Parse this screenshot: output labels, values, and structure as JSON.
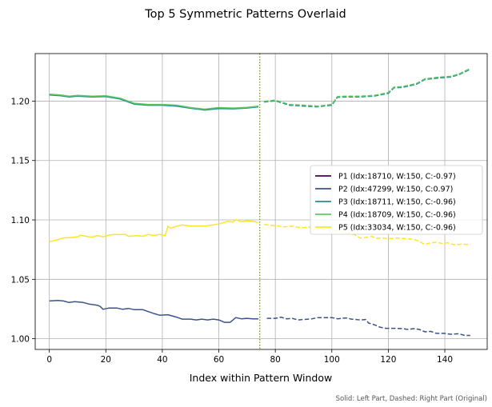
{
  "chart_data": {
    "type": "line",
    "title": "Top 5 Symmetric Patterns Overlaid",
    "xlabel": "Index within Pattern Window",
    "ylabel": "",
    "xlim": [
      -5,
      155
    ],
    "ylim": [
      0.991,
      1.24
    ],
    "x_ticks": [
      0,
      20,
      40,
      60,
      80,
      100,
      120,
      140
    ],
    "y_ticks": [
      1.0,
      1.05,
      1.1,
      1.15,
      1.2
    ],
    "x_tick_labels": [
      "0",
      "20",
      "40",
      "60",
      "80",
      "100",
      "120",
      "140"
    ],
    "y_tick_labels": [
      "1.00",
      "1.05",
      "1.10",
      "1.15",
      "1.20"
    ],
    "grid": true,
    "legend_position": "center-right",
    "split_index": 74.5,
    "split_color": "#6b8e23",
    "footnote": "Solid: Left Part, Dashed: Right Part (Original)",
    "series": [
      {
        "name": "P1 (Idx:18710, W:150, C:-0.97)",
        "color": "#440154",
        "points": [
          [
            0,
            1.2055
          ],
          [
            4,
            1.2048
          ],
          [
            7,
            1.2038
          ],
          [
            10,
            1.2044
          ],
          [
            15,
            1.2038
          ],
          [
            20,
            1.2041
          ],
          [
            25,
            1.2021
          ],
          [
            30,
            1.1978
          ],
          [
            35,
            1.1968
          ],
          [
            40,
            1.1968
          ],
          [
            45,
            1.1962
          ],
          [
            50,
            1.1943
          ],
          [
            55,
            1.1928
          ],
          [
            60,
            1.1942
          ],
          [
            65,
            1.1938
          ],
          [
            70,
            1.1945
          ],
          [
            74,
            1.1955
          ],
          [
            76,
            1.1995
          ],
          [
            80,
            1.2005
          ],
          [
            85,
            1.1968
          ],
          [
            90,
            1.1962
          ],
          [
            95,
            1.1955
          ],
          [
            100,
            1.1968
          ],
          [
            102,
            1.2035
          ],
          [
            105,
            1.2038
          ],
          [
            110,
            1.2038
          ],
          [
            115,
            1.2045
          ],
          [
            120,
            1.2068
          ],
          [
            122,
            1.2115
          ],
          [
            125,
            1.2118
          ],
          [
            130,
            1.2145
          ],
          [
            133,
            1.2185
          ],
          [
            138,
            1.2198
          ],
          [
            142,
            1.2205
          ],
          [
            145,
            1.2225
          ],
          [
            149,
            1.2272
          ]
        ]
      },
      {
        "name": "P2 (Idx:47299, W:150, C:0.97)",
        "color": "#3b528b",
        "points": [
          [
            0,
            1.0318
          ],
          [
            3,
            1.0322
          ],
          [
            5,
            1.0318
          ],
          [
            7,
            1.0305
          ],
          [
            9,
            1.0312
          ],
          [
            12,
            1.0305
          ],
          [
            14,
            1.0292
          ],
          [
            17,
            1.0282
          ],
          [
            18,
            1.0272
          ],
          [
            19,
            1.0248
          ],
          [
            21,
            1.0258
          ],
          [
            24,
            1.0258
          ],
          [
            26,
            1.0248
          ],
          [
            28,
            1.0255
          ],
          [
            30,
            1.0245
          ],
          [
            33,
            1.0245
          ],
          [
            35,
            1.0228
          ],
          [
            37,
            1.0212
          ],
          [
            39,
            1.0198
          ],
          [
            42,
            1.0202
          ],
          [
            45,
            1.0182
          ],
          [
            47,
            1.0165
          ],
          [
            50,
            1.0165
          ],
          [
            52,
            1.0158
          ],
          [
            54,
            1.0165
          ],
          [
            56,
            1.0158
          ],
          [
            58,
            1.0165
          ],
          [
            60,
            1.0158
          ],
          [
            62,
            1.0138
          ],
          [
            64,
            1.0138
          ],
          [
            66,
            1.0178
          ],
          [
            68,
            1.0168
          ],
          [
            70,
            1.0172
          ],
          [
            72,
            1.0168
          ],
          [
            74,
            1.0168
          ],
          [
            77,
            1.0172
          ],
          [
            80,
            1.0172
          ],
          [
            82,
            1.0182
          ],
          [
            84,
            1.0168
          ],
          [
            86,
            1.0172
          ],
          [
            88,
            1.0158
          ],
          [
            90,
            1.0162
          ],
          [
            93,
            1.0168
          ],
          [
            95,
            1.0178
          ],
          [
            98,
            1.0178
          ],
          [
            100,
            1.0178
          ],
          [
            102,
            1.0168
          ],
          [
            105,
            1.0175
          ],
          [
            107,
            1.0165
          ],
          [
            110,
            1.0158
          ],
          [
            112,
            1.0162
          ],
          [
            113,
            1.0132
          ],
          [
            115,
            1.0118
          ],
          [
            117,
            1.0098
          ],
          [
            119,
            1.0088
          ],
          [
            122,
            1.0088
          ],
          [
            125,
            1.0085
          ],
          [
            127,
            1.0078
          ],
          [
            129,
            1.0085
          ],
          [
            131,
            1.0078
          ],
          [
            133,
            1.0058
          ],
          [
            135,
            1.0062
          ],
          [
            137,
            1.0045
          ],
          [
            140,
            1.0045
          ],
          [
            142,
            1.0038
          ],
          [
            145,
            1.0042
          ],
          [
            147,
            1.0028
          ],
          [
            149,
            1.0028
          ]
        ]
      },
      {
        "name": "P3 (Idx:18711, W:150, C:-0.96)",
        "color": "#21918c",
        "points": [
          [
            0,
            1.2052
          ],
          [
            4,
            1.2045
          ],
          [
            7,
            1.2035
          ],
          [
            10,
            1.2042
          ],
          [
            15,
            1.2035
          ],
          [
            20,
            1.2038
          ],
          [
            25,
            1.2018
          ],
          [
            30,
            1.1975
          ],
          [
            35,
            1.1965
          ],
          [
            40,
            1.1965
          ],
          [
            45,
            1.1958
          ],
          [
            50,
            1.194
          ],
          [
            55,
            1.1925
          ],
          [
            60,
            1.1938
          ],
          [
            65,
            1.1935
          ],
          [
            70,
            1.1942
          ],
          [
            74,
            1.1952
          ],
          [
            76,
            1.1992
          ],
          [
            80,
            1.2002
          ],
          [
            85,
            1.1965
          ],
          [
            90,
            1.1958
          ],
          [
            95,
            1.1952
          ],
          [
            100,
            1.1965
          ],
          [
            102,
            1.2032
          ],
          [
            105,
            1.2035
          ],
          [
            110,
            1.2035
          ],
          [
            115,
            1.2042
          ],
          [
            120,
            1.2065
          ],
          [
            122,
            1.2112
          ],
          [
            125,
            1.2115
          ],
          [
            130,
            1.2142
          ],
          [
            133,
            1.2182
          ],
          [
            138,
            1.2195
          ],
          [
            142,
            1.2202
          ],
          [
            145,
            1.2222
          ],
          [
            149,
            1.2268
          ]
        ]
      },
      {
        "name": "P4 (Idx:18709, W:150, C:-0.96)",
        "color": "#5ec962",
        "points": [
          [
            0,
            1.2058
          ],
          [
            4,
            1.2052
          ],
          [
            7,
            1.2042
          ],
          [
            10,
            1.2048
          ],
          [
            15,
            1.2042
          ],
          [
            20,
            1.2045
          ],
          [
            25,
            1.2025
          ],
          [
            30,
            1.1982
          ],
          [
            35,
            1.1972
          ],
          [
            40,
            1.1972
          ],
          [
            45,
            1.1966
          ],
          [
            50,
            1.1946
          ],
          [
            55,
            1.1932
          ],
          [
            60,
            1.1946
          ],
          [
            65,
            1.1942
          ],
          [
            70,
            1.1948
          ],
          [
            74,
            1.1958
          ],
          [
            76,
            1.1998
          ],
          [
            80,
            1.2008
          ],
          [
            85,
            1.1972
          ],
          [
            90,
            1.1966
          ],
          [
            95,
            1.1958
          ],
          [
            100,
            1.1972
          ],
          [
            102,
            1.2038
          ],
          [
            105,
            1.2042
          ],
          [
            110,
            1.2042
          ],
          [
            115,
            1.2048
          ],
          [
            120,
            1.2072
          ],
          [
            122,
            1.2118
          ],
          [
            125,
            1.2122
          ],
          [
            130,
            1.2148
          ],
          [
            133,
            1.2188
          ],
          [
            138,
            1.2202
          ],
          [
            142,
            1.2208
          ],
          [
            145,
            1.2228
          ],
          [
            149,
            1.2275
          ]
        ]
      },
      {
        "name": "P5 (Idx:33034, W:150, C:-0.96)",
        "color": "#fde725",
        "points": [
          [
            0,
            1.0818
          ],
          [
            2,
            1.0828
          ],
          [
            5,
            1.0848
          ],
          [
            8,
            1.0852
          ],
          [
            10,
            1.0858
          ],
          [
            11,
            1.0872
          ],
          [
            13,
            1.0862
          ],
          [
            15,
            1.0855
          ],
          [
            17,
            1.0868
          ],
          [
            19,
            1.0858
          ],
          [
            21,
            1.0872
          ],
          [
            23,
            1.0878
          ],
          [
            27,
            1.0878
          ],
          [
            28,
            1.0862
          ],
          [
            31,
            1.0868
          ],
          [
            33,
            1.0862
          ],
          [
            35,
            1.0878
          ],
          [
            37,
            1.0868
          ],
          [
            39,
            1.0878
          ],
          [
            41,
            1.0868
          ],
          [
            42,
            1.0948
          ],
          [
            43,
            1.0928
          ],
          [
            45,
            1.0948
          ],
          [
            47,
            1.0958
          ],
          [
            50,
            1.0948
          ],
          [
            55,
            1.0948
          ],
          [
            58,
            1.0958
          ],
          [
            61,
            1.0972
          ],
          [
            63,
            1.0988
          ],
          [
            65,
            1.0982
          ],
          [
            66,
            1.1002
          ],
          [
            68,
            1.0985
          ],
          [
            70,
            1.0992
          ],
          [
            72,
            1.0988
          ],
          [
            74,
            1.0978
          ],
          [
            76,
            1.0962
          ],
          [
            80,
            1.0952
          ],
          [
            83,
            1.0942
          ],
          [
            86,
            1.0948
          ],
          [
            89,
            1.0932
          ],
          [
            92,
            1.0942
          ],
          [
            95,
            1.0918
          ],
          [
            98,
            1.0922
          ],
          [
            100,
            1.0918
          ],
          [
            103,
            1.0902
          ],
          [
            106,
            1.0882
          ],
          [
            108,
            1.0878
          ],
          [
            110,
            1.0848
          ],
          [
            112,
            1.0852
          ],
          [
            114,
            1.0862
          ],
          [
            116,
            1.0845
          ],
          [
            118,
            1.0848
          ],
          [
            120,
            1.0842
          ],
          [
            123,
            1.0848
          ],
          [
            126,
            1.0842
          ],
          [
            129,
            1.0838
          ],
          [
            131,
            1.0818
          ],
          [
            133,
            1.0792
          ],
          [
            135,
            1.0808
          ],
          [
            137,
            1.0812
          ],
          [
            139,
            1.0802
          ],
          [
            141,
            1.0808
          ],
          [
            143,
            1.0792
          ],
          [
            146,
            1.0795
          ],
          [
            149,
            1.0792
          ]
        ]
      }
    ]
  }
}
